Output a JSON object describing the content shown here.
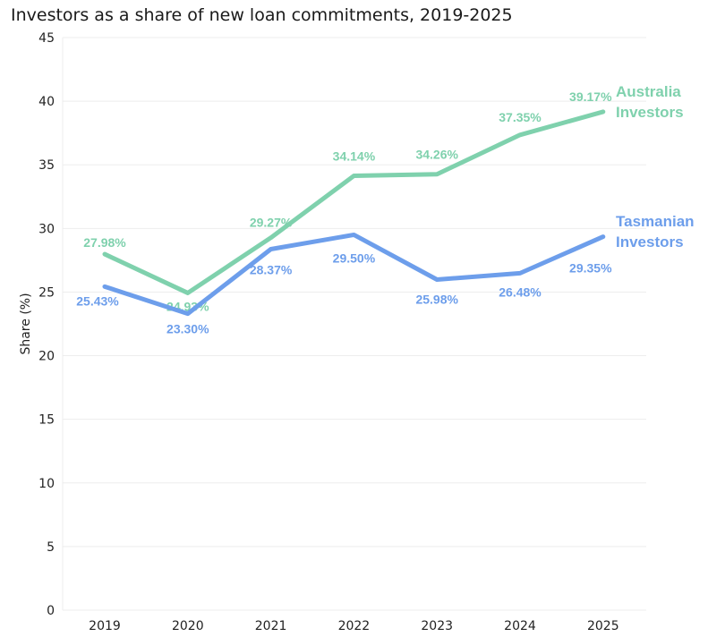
{
  "colors": {
    "australia": "#7fd1ad",
    "tasmania": "#6d9eeb",
    "grid": "#ededed",
    "text": "#222222"
  },
  "chart_data": {
    "type": "line",
    "title": "Investors as a share of new loan commitments, 2019-2025",
    "xlabel": "",
    "ylabel": "Share (%)",
    "ylim": [
      0,
      45
    ],
    "yticks": [
      0,
      5,
      10,
      15,
      20,
      25,
      30,
      35,
      40,
      45
    ],
    "categories": [
      "2019",
      "2020",
      "2021",
      "2022",
      "2023",
      "2024",
      "2025"
    ],
    "grid": true,
    "legend": "end-of-line labels",
    "series": [
      {
        "key": "australia",
        "name": "Australia Investors",
        "name_lines": [
          "Australia",
          "Investors"
        ],
        "values": [
          27.98,
          24.93,
          29.27,
          34.14,
          34.26,
          37.35,
          39.17
        ],
        "labels": [
          "27.98%",
          "24.93%",
          "29.27%",
          "34.14%",
          "34.26%",
          "37.35%",
          "39.17%"
        ]
      },
      {
        "key": "tasmania",
        "name": "Tasmanian Investors",
        "name_lines": [
          "Tasmanian",
          "Investors"
        ],
        "values": [
          25.43,
          23.3,
          28.37,
          29.5,
          25.98,
          26.48,
          29.35
        ],
        "labels": [
          "25.43%",
          "23.30%",
          "28.37%",
          "29.50%",
          "25.98%",
          "26.48%",
          "29.35%"
        ]
      }
    ]
  }
}
